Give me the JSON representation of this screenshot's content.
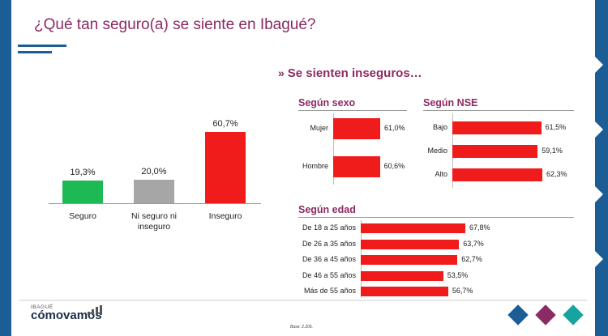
{
  "title": "¿Qué tan seguro(a) se siente en Ibagué?",
  "subtitle": "Se sienten inseguros…",
  "logo": {
    "small": "IBAGUÉ",
    "main": "cómovamos"
  },
  "base_note": "Base: 2.206.",
  "colors": {
    "brand": "#8c2a64",
    "accent_blue": "#1c5d96",
    "bar_red": "#f01c1c",
    "bar_green": "#1db954",
    "bar_gray": "#a6a6a6",
    "diamond_blue": "#1c5d96",
    "diamond_purple": "#8c2a64",
    "diamond_teal": "#17a3a0"
  },
  "chart_data": [
    {
      "type": "bar",
      "orientation": "vertical",
      "title": "",
      "categories": [
        "Seguro",
        "Ni seguro ni inseguro",
        "Inseguro"
      ],
      "category_lines": [
        [
          "Seguro"
        ],
        [
          "Ni seguro ni",
          "inseguro"
        ],
        [
          "Inseguro"
        ]
      ],
      "values": [
        19.3,
        20.0,
        60.7
      ],
      "value_labels": [
        "19,3%",
        "20,0%",
        "60,7%"
      ],
      "bar_colors": [
        "#1db954",
        "#a6a6a6",
        "#f01c1c"
      ],
      "ylim": [
        0,
        65
      ],
      "grid": false
    },
    {
      "type": "bar",
      "orientation": "horizontal",
      "title": "Según sexo",
      "categories": [
        "Mujer",
        "Hombre"
      ],
      "values": [
        61.0,
        60.6
      ],
      "value_labels": [
        "61,0%",
        "60,6%"
      ],
      "xlim": [
        0,
        100
      ],
      "grid": false
    },
    {
      "type": "bar",
      "orientation": "horizontal",
      "title": "Según NSE",
      "categories": [
        "Bajo",
        "Medio",
        "Alto"
      ],
      "values": [
        61.5,
        59.1,
        62.3
      ],
      "value_labels": [
        "61,5%",
        "59,1%",
        "62,3%"
      ],
      "xlim": [
        0,
        100
      ],
      "grid": false
    },
    {
      "type": "bar",
      "orientation": "horizontal",
      "title": "Según edad",
      "categories": [
        "De 18 a 25 años",
        "De 26 a 35 años",
        "De 36 a 45 años",
        "De 46 a 55 años",
        "Más de 55 años"
      ],
      "values": [
        67.8,
        63.7,
        62.7,
        53.5,
        56.7
      ],
      "value_labels": [
        "67,8%",
        "63,7%",
        "62,7%",
        "53,5%",
        "56,7%"
      ],
      "xlim": [
        0,
        100
      ],
      "grid": false
    }
  ]
}
